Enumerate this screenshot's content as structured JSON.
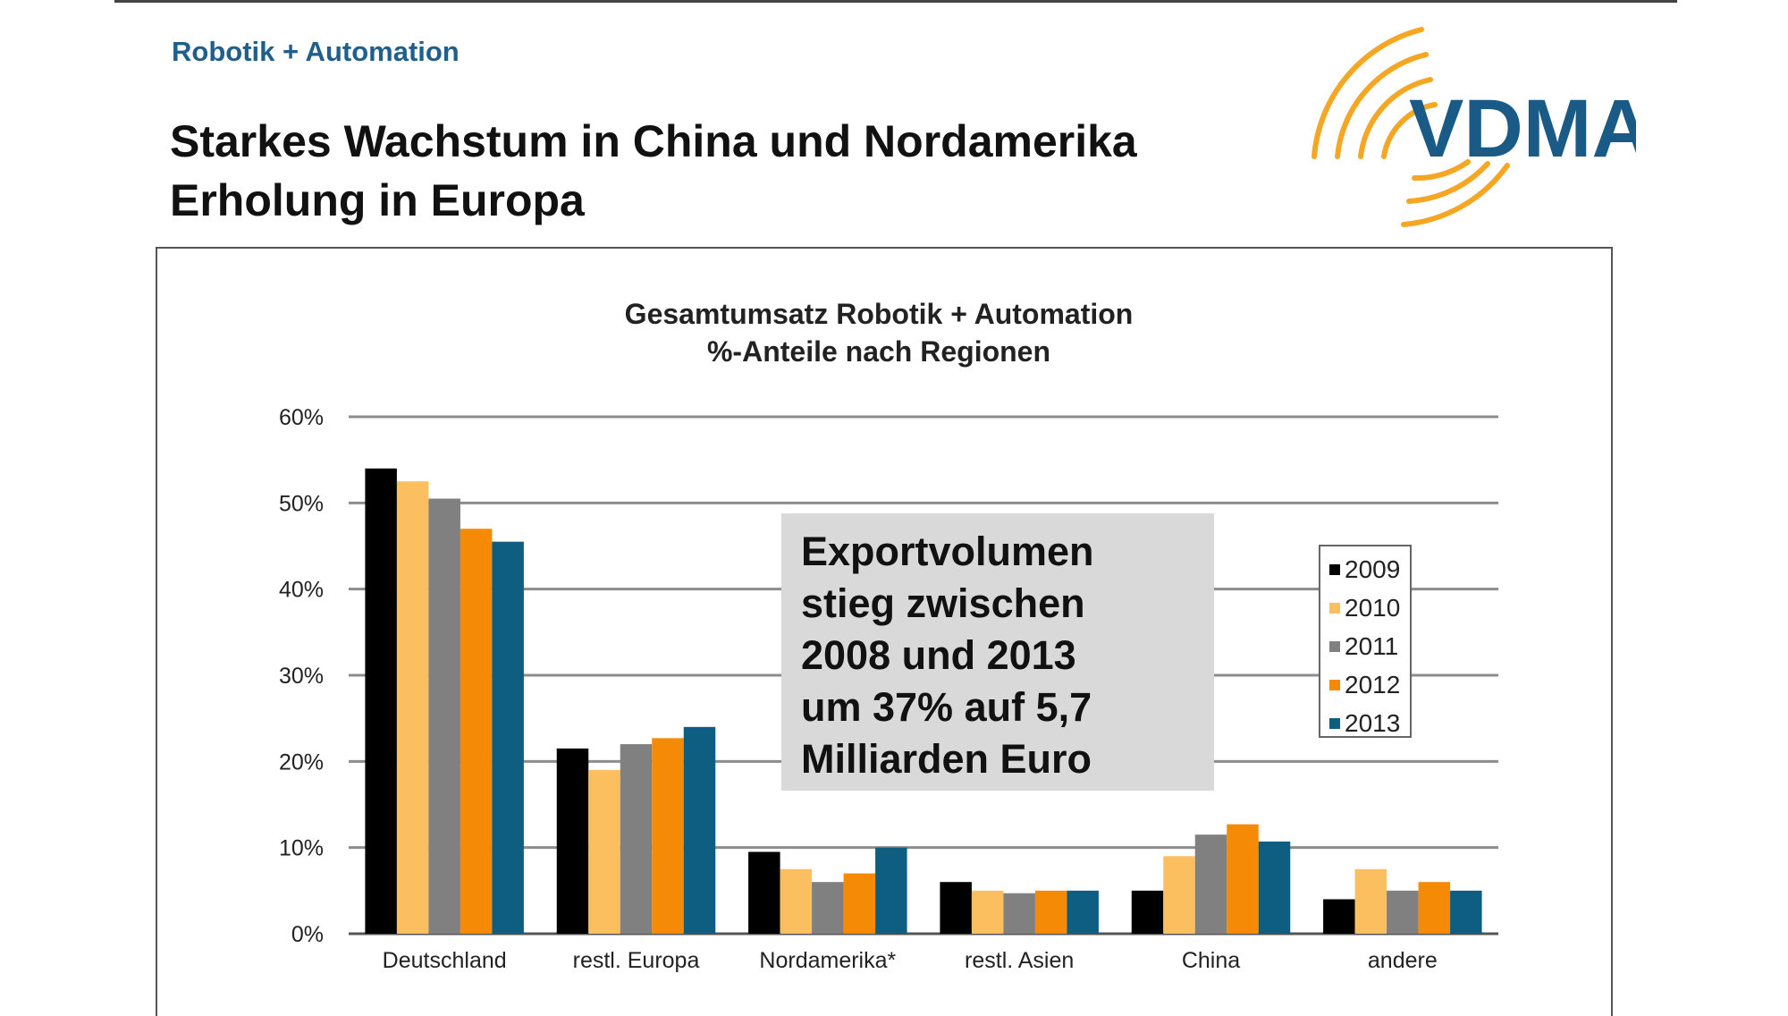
{
  "header": {
    "section": "Robotik + Automation",
    "headline_lines": [
      "Starkes Wachstum in China und Nordamerika",
      "Erholung in Europa"
    ]
  },
  "logo": {
    "text": "VDMA",
    "text_color": "#1a5a86",
    "arc_color": "#f5a623"
  },
  "callout": {
    "lines": [
      "Exportvolumen",
      "stieg zwischen",
      "2008 und 2013",
      "um 37% auf 5,7",
      "Milliarden Euro"
    ],
    "background": "#d9d9d9"
  },
  "chart_data": {
    "type": "bar",
    "title": [
      "Gesamtumsatz Robotik + Automation",
      "%-Anteile nach Regionen"
    ],
    "categories": [
      "Deutschland",
      "restl. Europa",
      "Nordamerika*",
      "restl. Asien",
      "China",
      "andere"
    ],
    "series": [
      {
        "name": "2009",
        "color": "#000000",
        "values": [
          54,
          21.5,
          9.5,
          6,
          5,
          4
        ]
      },
      {
        "name": "2010",
        "color": "#fbbf5f",
        "values": [
          52.5,
          19,
          7.5,
          5,
          9,
          7.5
        ]
      },
      {
        "name": "2011",
        "color": "#808080",
        "values": [
          50.5,
          22,
          6,
          4.7,
          11.5,
          5
        ]
      },
      {
        "name": "2012",
        "color": "#f58a07",
        "values": [
          47,
          22.7,
          7,
          5,
          12.7,
          6
        ]
      },
      {
        "name": "2013",
        "color": "#0d5e80",
        "values": [
          45.5,
          24,
          10,
          5,
          10.7,
          5
        ]
      }
    ],
    "y_ticks": [
      "0%",
      "10%",
      "20%",
      "30%",
      "40%",
      "50%",
      "60%"
    ],
    "ylim": [
      0,
      60
    ],
    "grid": true,
    "legend_position": "right"
  }
}
